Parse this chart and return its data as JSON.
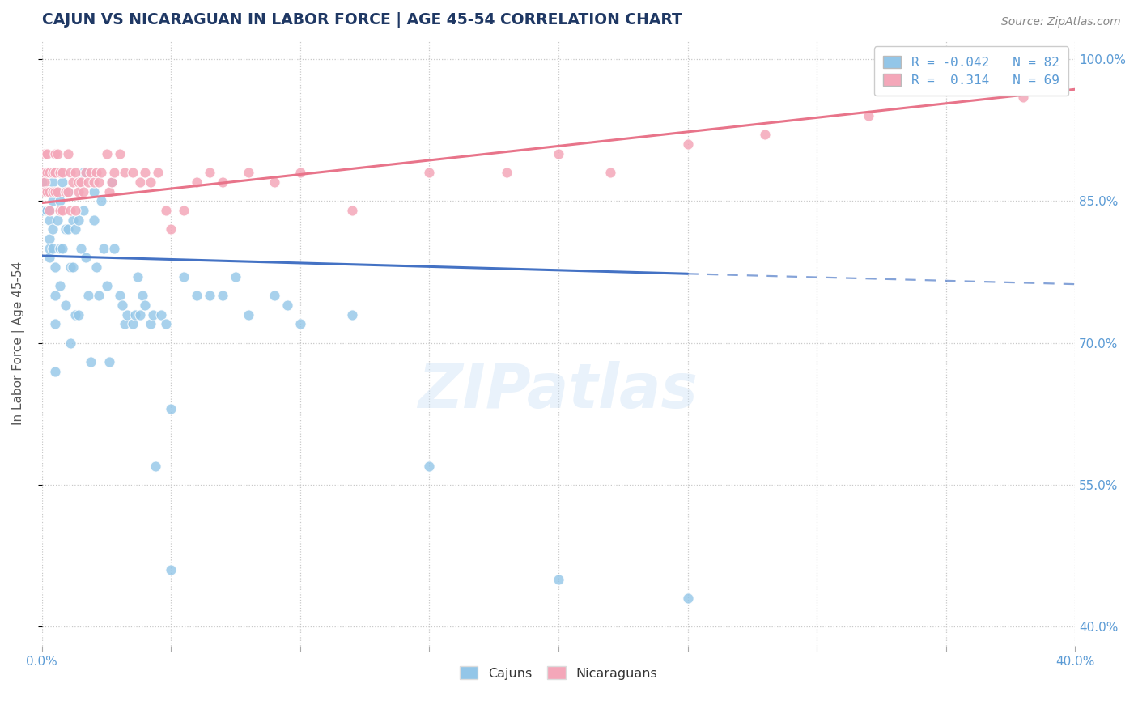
{
  "title": "CAJUN VS NICARAGUAN IN LABOR FORCE | AGE 45-54 CORRELATION CHART",
  "source_text": "Source: ZipAtlas.com",
  "ylabel": "In Labor Force | Age 45-54",
  "watermark": "ZIPatlas",
  "legend_r_cajun": "R = -0.042",
  "legend_n_cajun": "N = 82",
  "legend_r_nic": "R =  0.314",
  "legend_n_nic": "N = 69",
  "xlim": [
    0.0,
    0.4
  ],
  "ylim": [
    0.38,
    1.02
  ],
  "xticks": [
    0.0,
    0.05,
    0.1,
    0.15,
    0.2,
    0.25,
    0.3,
    0.35,
    0.4
  ],
  "xticklabels_show": [
    "0.0%",
    "",
    "",
    "",
    "",
    "",
    "",
    "",
    "40.0%"
  ],
  "yticks": [
    0.4,
    0.55,
    0.7,
    0.85,
    1.0
  ],
  "yticklabels": [
    "40.0%",
    "55.0%",
    "70.0%",
    "85.0%",
    "100.0%"
  ],
  "cajun_color": "#93c6e8",
  "nicaraguan_color": "#f4a7b9",
  "trend_cajun_color": "#4472c4",
  "trend_nicaraguan_color": "#e8748a",
  "background_color": "#ffffff",
  "grid_color": "#c8c8c8",
  "title_color": "#1f3864",
  "axis_label_color": "#555555",
  "tick_color": "#5b9bd5",
  "cajun_scatter_x": [
    0.0,
    0.0,
    0.002,
    0.002,
    0.003,
    0.003,
    0.003,
    0.003,
    0.003,
    0.004,
    0.004,
    0.004,
    0.004,
    0.005,
    0.005,
    0.005,
    0.005,
    0.006,
    0.006,
    0.007,
    0.007,
    0.007,
    0.008,
    0.008,
    0.009,
    0.009,
    0.01,
    0.01,
    0.011,
    0.011,
    0.012,
    0.012,
    0.013,
    0.013,
    0.014,
    0.014,
    0.015,
    0.016,
    0.016,
    0.017,
    0.018,
    0.019,
    0.02,
    0.02,
    0.021,
    0.022,
    0.023,
    0.024,
    0.025,
    0.026,
    0.027,
    0.028,
    0.03,
    0.031,
    0.032,
    0.033,
    0.035,
    0.036,
    0.037,
    0.038,
    0.039,
    0.04,
    0.042,
    0.043,
    0.044,
    0.046,
    0.048,
    0.05,
    0.05,
    0.055,
    0.06,
    0.065,
    0.07,
    0.075,
    0.08,
    0.09,
    0.095,
    0.1,
    0.12,
    0.15,
    0.2,
    0.25
  ],
  "cajun_scatter_y": [
    0.84,
    0.87,
    0.84,
    0.84,
    0.84,
    0.83,
    0.81,
    0.8,
    0.79,
    0.87,
    0.85,
    0.82,
    0.8,
    0.78,
    0.75,
    0.72,
    0.67,
    0.86,
    0.83,
    0.85,
    0.8,
    0.76,
    0.87,
    0.8,
    0.74,
    0.82,
    0.86,
    0.82,
    0.78,
    0.7,
    0.83,
    0.78,
    0.82,
    0.73,
    0.83,
    0.73,
    0.8,
    0.88,
    0.84,
    0.79,
    0.75,
    0.68,
    0.86,
    0.83,
    0.78,
    0.75,
    0.85,
    0.8,
    0.76,
    0.68,
    0.87,
    0.8,
    0.75,
    0.74,
    0.72,
    0.73,
    0.72,
    0.73,
    0.77,
    0.73,
    0.75,
    0.74,
    0.72,
    0.73,
    0.57,
    0.73,
    0.72,
    0.63,
    0.46,
    0.77,
    0.75,
    0.75,
    0.75,
    0.77,
    0.73,
    0.75,
    0.74,
    0.72,
    0.73,
    0.57,
    0.45,
    0.43
  ],
  "nicaraguan_scatter_x": [
    0.0,
    0.001,
    0.001,
    0.001,
    0.002,
    0.002,
    0.002,
    0.003,
    0.003,
    0.003,
    0.004,
    0.004,
    0.005,
    0.005,
    0.005,
    0.006,
    0.006,
    0.007,
    0.007,
    0.008,
    0.008,
    0.009,
    0.01,
    0.01,
    0.011,
    0.011,
    0.012,
    0.013,
    0.013,
    0.014,
    0.014,
    0.015,
    0.016,
    0.017,
    0.018,
    0.019,
    0.02,
    0.021,
    0.022,
    0.023,
    0.025,
    0.026,
    0.027,
    0.028,
    0.03,
    0.032,
    0.035,
    0.038,
    0.04,
    0.042,
    0.045,
    0.048,
    0.05,
    0.055,
    0.06,
    0.065,
    0.07,
    0.08,
    0.09,
    0.1,
    0.12,
    0.15,
    0.18,
    0.2,
    0.22,
    0.25,
    0.28,
    0.32,
    0.38
  ],
  "nicaraguan_scatter_y": [
    0.88,
    0.9,
    0.87,
    0.86,
    0.9,
    0.88,
    0.86,
    0.88,
    0.86,
    0.84,
    0.88,
    0.86,
    0.9,
    0.88,
    0.86,
    0.9,
    0.86,
    0.88,
    0.84,
    0.88,
    0.84,
    0.86,
    0.9,
    0.86,
    0.88,
    0.84,
    0.87,
    0.88,
    0.84,
    0.87,
    0.86,
    0.87,
    0.86,
    0.88,
    0.87,
    0.88,
    0.87,
    0.88,
    0.87,
    0.88,
    0.9,
    0.86,
    0.87,
    0.88,
    0.9,
    0.88,
    0.88,
    0.87,
    0.88,
    0.87,
    0.88,
    0.84,
    0.82,
    0.84,
    0.87,
    0.88,
    0.87,
    0.88,
    0.87,
    0.88,
    0.84,
    0.88,
    0.88,
    0.9,
    0.88,
    0.91,
    0.92,
    0.94,
    0.96
  ],
  "cajun_trend_x0": 0.0,
  "cajun_trend_y0": 0.792,
  "cajun_trend_x1": 0.25,
  "cajun_trend_y1": 0.773,
  "cajun_trend_xdash": 0.25,
  "cajun_trend_x2": 0.4,
  "cajun_trend_y2": 0.762,
  "nic_trend_x0": 0.0,
  "nic_trend_y0": 0.848,
  "nic_trend_x1": 0.4,
  "nic_trend_y1": 0.968
}
